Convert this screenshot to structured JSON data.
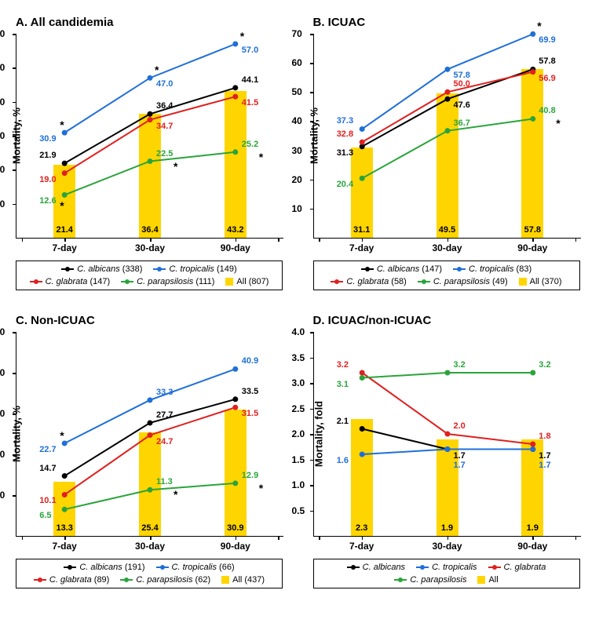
{
  "colors": {
    "albicans": "#000000",
    "tropicalis": "#1f6fd8",
    "glabrata": "#e02020",
    "parapsilosis": "#2aa43a",
    "all_bar": "#ffd500"
  },
  "x_categories": [
    "7-day",
    "30-day",
    "90-day"
  ],
  "panels": {
    "A": {
      "title": "A. All candidemia",
      "ylabel": "Mortality, %",
      "ymin": 0,
      "ymax": 60,
      "ystep": 10,
      "series": {
        "albicans": {
          "values": [
            21.9,
            36.4,
            44.1
          ],
          "labels": [
            "21.9",
            "36.4",
            "44.1"
          ],
          "label_pos": [
            "above",
            "above",
            "above"
          ],
          "stars": [
            0,
            0,
            0
          ]
        },
        "tropicalis": {
          "values": [
            30.9,
            47.0,
            57.0
          ],
          "labels": [
            "30.9",
            "47.0",
            "57.0"
          ],
          "label_pos": [
            "below",
            "below",
            "below"
          ],
          "stars": [
            1,
            1,
            1
          ]
        },
        "glabrata": {
          "values": [
            19.0,
            34.7,
            41.5
          ],
          "labels": [
            "19.0",
            "34.7",
            "41.5"
          ],
          "label_pos": [
            "below",
            "below",
            "below"
          ],
          "stars": [
            0,
            0,
            0
          ]
        },
        "parapsilosis": {
          "values": [
            12.6,
            22.5,
            25.2
          ],
          "labels": [
            "12.6",
            "22.5",
            "25.2"
          ],
          "label_pos": [
            "below",
            "above",
            "above"
          ],
          "stars": [
            1,
            1,
            1
          ]
        }
      },
      "bars": {
        "values": [
          21.4,
          36.4,
          43.2
        ],
        "labels": [
          "21.4",
          "36.4",
          "43.2"
        ]
      },
      "legend": [
        {
          "type": "line",
          "color": "albicans",
          "text": "C. albicans",
          "suffix": " (338)"
        },
        {
          "type": "line",
          "color": "tropicalis",
          "text": "C. tropicalis",
          "suffix": " (149)"
        },
        {
          "type": "line",
          "color": "glabrata",
          "text": "C. glabrata",
          "suffix": " (147)"
        },
        {
          "type": "line",
          "color": "parapsilosis",
          "text": "C. parapsilosis",
          "suffix": " (111)"
        },
        {
          "type": "sq",
          "color": "all_bar",
          "text": "All (807)",
          "suffix": ""
        }
      ]
    },
    "B": {
      "title": "B. ICUAC",
      "ylabel": "Mortality, %",
      "ymin": 0,
      "ymax": 70,
      "ystep": 10,
      "series": {
        "albicans": {
          "values": [
            31.3,
            47.6,
            57.8
          ],
          "labels": [
            "31.3",
            "47.6",
            "57.8"
          ],
          "label_pos": [
            "below",
            "below",
            "above"
          ],
          "stars": [
            0,
            0,
            0
          ]
        },
        "tropicalis": {
          "values": [
            37.3,
            57.8,
            69.9
          ],
          "labels": [
            "37.3",
            "57.8",
            "69.9"
          ],
          "label_pos": [
            "above",
            "below",
            "below"
          ],
          "stars": [
            0,
            0,
            1
          ]
        },
        "glabrata": {
          "values": [
            32.8,
            50.0,
            56.9
          ],
          "labels": [
            "32.8",
            "50.0",
            "56.9"
          ],
          "label_pos": [
            "above",
            "above",
            "below"
          ],
          "stars": [
            0,
            0,
            0
          ]
        },
        "parapsilosis": {
          "values": [
            20.4,
            36.7,
            40.8
          ],
          "labels": [
            "20.4",
            "36.7",
            "40.8"
          ],
          "label_pos": [
            "below",
            "above",
            "above"
          ],
          "stars": [
            0,
            0,
            1
          ]
        }
      },
      "bars": {
        "values": [
          31.1,
          49.5,
          57.8
        ],
        "labels": [
          "31.1",
          "49.5",
          "57.8"
        ]
      },
      "legend": [
        {
          "type": "line",
          "color": "albicans",
          "text": "C. albicans",
          "suffix": " (147)"
        },
        {
          "type": "line",
          "color": "tropicalis",
          "text": "C. tropicalis",
          "suffix": " (83)"
        },
        {
          "type": "line",
          "color": "glabrata",
          "text": "C. glabrata",
          "suffix": " (58)"
        },
        {
          "type": "line",
          "color": "parapsilosis",
          "text": "C. parapsilosis",
          "suffix": " (49)"
        },
        {
          "type": "sq",
          "color": "all_bar",
          "text": "All (370)",
          "suffix": ""
        }
      ]
    },
    "C": {
      "title": "C. Non-ICUAC",
      "ylabel": "Mortality, %",
      "ymin": 0,
      "ymax": 50,
      "ystep": 10,
      "series": {
        "albicans": {
          "values": [
            14.7,
            27.7,
            33.5
          ],
          "labels": [
            "14.7",
            "27.7",
            "33.5"
          ],
          "label_pos": [
            "above",
            "above",
            "above"
          ],
          "stars": [
            0,
            0,
            0
          ]
        },
        "tropicalis": {
          "values": [
            22.7,
            33.3,
            40.9
          ],
          "labels": [
            "22.7",
            "33.3",
            "40.9"
          ],
          "label_pos": [
            "below",
            "above",
            "above"
          ],
          "stars": [
            1,
            0,
            0
          ]
        },
        "glabrata": {
          "values": [
            10.1,
            24.7,
            31.5
          ],
          "labels": [
            "10.1",
            "24.7",
            "31.5"
          ],
          "label_pos": [
            "below",
            "below",
            "below"
          ],
          "stars": [
            0,
            0,
            0
          ]
        },
        "parapsilosis": {
          "values": [
            6.5,
            11.3,
            12.9
          ],
          "labels": [
            "6.5",
            "11.3",
            "12.9"
          ],
          "label_pos": [
            "below",
            "above",
            "above"
          ],
          "stars": [
            0,
            1,
            1
          ]
        }
      },
      "bars": {
        "values": [
          13.3,
          25.4,
          30.9
        ],
        "labels": [
          "13.3",
          "25.4",
          "30.9"
        ]
      },
      "legend": [
        {
          "type": "line",
          "color": "albicans",
          "text": "C. albicans",
          "suffix": " (191)"
        },
        {
          "type": "line",
          "color": "tropicalis",
          "text": "C. tropicalis",
          "suffix": " (66)"
        },
        {
          "type": "line",
          "color": "glabrata",
          "text": "C. glabrata",
          "suffix": " (89)"
        },
        {
          "type": "line",
          "color": "parapsilosis",
          "text": "C. parapsilosis",
          "suffix": " (62)"
        },
        {
          "type": "sq",
          "color": "all_bar",
          "text": "All (437)",
          "suffix": ""
        }
      ]
    },
    "D": {
      "title": "D. ICUAC/non-ICUAC",
      "ylabel": "Mortality, fold",
      "ymin": 0,
      "ymax": 4.0,
      "ystep": 0.5,
      "series": {
        "albicans": {
          "values": [
            2.1,
            1.7,
            1.7
          ],
          "labels": [
            "2.1",
            "1.7",
            "1.7"
          ],
          "label_pos": [
            "above",
            "below",
            "below"
          ],
          "stars": [
            0,
            0,
            0
          ]
        },
        "tropicalis": {
          "values": [
            1.6,
            1.7,
            1.7
          ],
          "labels": [
            "1.6",
            "1.7",
            "1.7"
          ],
          "label_pos": [
            "below",
            "below2",
            "below2"
          ],
          "stars": [
            0,
            0,
            0
          ]
        },
        "glabrata": {
          "values": [
            3.2,
            2.0,
            1.8
          ],
          "labels": [
            "3.2",
            "2.0",
            "1.8"
          ],
          "label_pos": [
            "above",
            "above",
            "above"
          ],
          "stars": [
            0,
            0,
            0
          ]
        },
        "parapsilosis": {
          "values": [
            3.1,
            3.2,
            3.2
          ],
          "labels": [
            "3.1",
            "3.2",
            "3.2"
          ],
          "label_pos": [
            "below",
            "above",
            "above"
          ],
          "stars": [
            0,
            0,
            0
          ]
        }
      },
      "bars": {
        "values": [
          2.3,
          1.9,
          1.9
        ],
        "labels": [
          "2.3",
          "1.9",
          "1.9"
        ]
      },
      "legend": [
        {
          "type": "line",
          "color": "albicans",
          "text": "C. albicans",
          "suffix": ""
        },
        {
          "type": "line",
          "color": "tropicalis",
          "text": "C. tropicalis",
          "suffix": ""
        },
        {
          "type": "line",
          "color": "glabrata",
          "text": "C. glabrata",
          "suffix": ""
        },
        {
          "type": "line",
          "color": "parapsilosis",
          "text": "C. parapsilosis",
          "suffix": ""
        },
        {
          "type": "sq",
          "color": "all_bar",
          "text": "All",
          "suffix": ""
        }
      ]
    }
  }
}
